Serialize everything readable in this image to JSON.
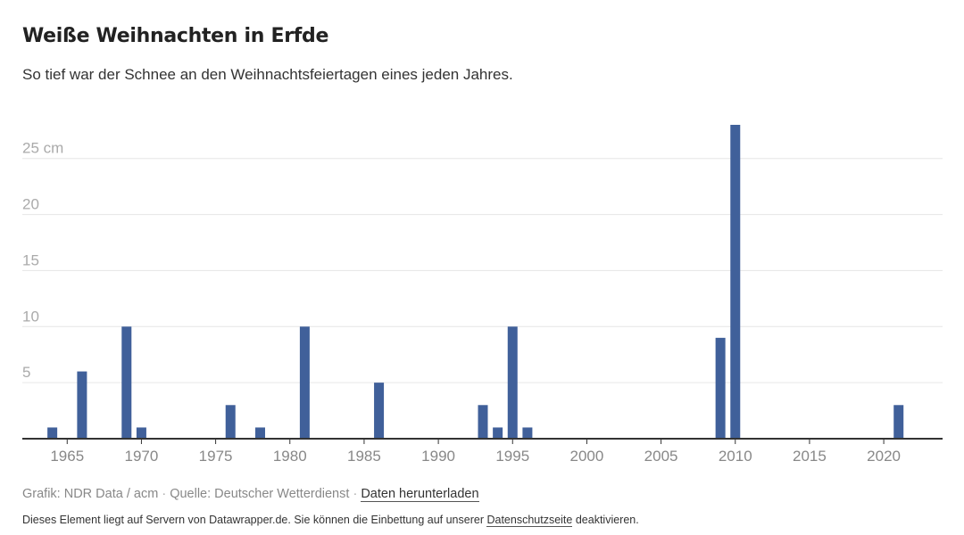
{
  "header": {
    "title": "Weiße Weihnachten in Erfde",
    "subtitle": "So tief war der Schnee an den Weihnachtsfeiertagen eines jeden Jahres."
  },
  "footer": {
    "grafik": "Grafik: NDR Data / acm",
    "separator": "·",
    "quelle": "Quelle: Deutscher Wetterdienst",
    "download_label": "Daten herunterladen"
  },
  "notice": {
    "text_before": "Dieses Element liegt auf Servern von Datawrapper.de. Sie können die Einbettung auf unserer",
    "link_label": "Datenschutzseite",
    "text_after": "deaktivieren."
  },
  "chart_data": {
    "type": "bar",
    "title": "Weiße Weihnachten in Erfde",
    "subtitle": "So tief war der Schnee an den Weihnachtsfeiertagen eines jeden Jahres.",
    "unit": "cm",
    "xlim": [
      1963,
      2023
    ],
    "ylim": [
      0,
      28
    ],
    "x_ticks": [
      1965,
      1970,
      1975,
      1980,
      1985,
      1990,
      1995,
      2000,
      2005,
      2010,
      2015,
      2020
    ],
    "y_ticks": [
      {
        "value": 5,
        "label": "5"
      },
      {
        "value": 10,
        "label": "10"
      },
      {
        "value": 15,
        "label": "15"
      },
      {
        "value": 20,
        "label": "20"
      },
      {
        "value": 25,
        "label": "25 cm"
      }
    ],
    "grid": true,
    "points": [
      {
        "x": 1964,
        "y": 1
      },
      {
        "x": 1966,
        "y": 6
      },
      {
        "x": 1969,
        "y": 10
      },
      {
        "x": 1970,
        "y": 1
      },
      {
        "x": 1976,
        "y": 3
      },
      {
        "x": 1978,
        "y": 1
      },
      {
        "x": 1981,
        "y": 10
      },
      {
        "x": 1986,
        "y": 5
      },
      {
        "x": 1993,
        "y": 3
      },
      {
        "x": 1994,
        "y": 1
      },
      {
        "x": 1995,
        "y": 10
      },
      {
        "x": 1996,
        "y": 1
      },
      {
        "x": 2009,
        "y": 9
      },
      {
        "x": 2010,
        "y": 28
      },
      {
        "x": 2021,
        "y": 3
      }
    ],
    "colors": {
      "bar": "#40609a",
      "grid": "#e6e6e6",
      "axis": "#333333",
      "tick_label": "#aaaaaa",
      "x_label": "#888888"
    }
  }
}
